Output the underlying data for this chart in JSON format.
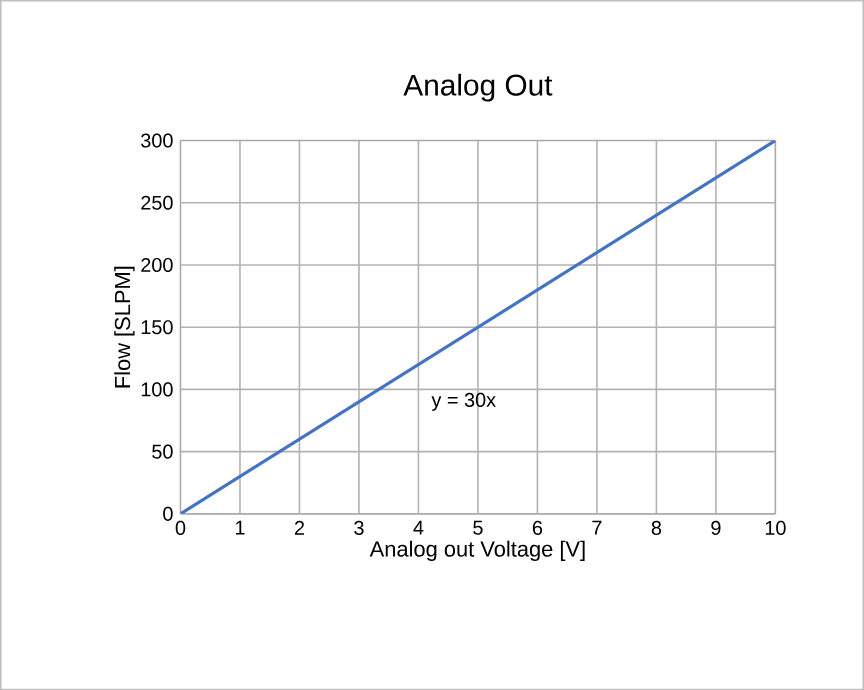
{
  "chart_data": {
    "type": "line",
    "title": "Analog Out",
    "xlabel": "Analog out Voltage [V]",
    "ylabel": "Flow [SLPM]",
    "x": [
      0,
      10
    ],
    "series": [
      {
        "color": "#4472c4",
        "values": [
          0,
          300
        ]
      }
    ],
    "xlim": [
      0,
      10
    ],
    "xticks": [
      0,
      1,
      2,
      3,
      4,
      5,
      6,
      7,
      8,
      9,
      10
    ],
    "ylim": [
      0,
      300
    ],
    "yticks": [
      0,
      50,
      100,
      150,
      200,
      250,
      300
    ],
    "grid": true,
    "marker": "none",
    "line_style": "solid",
    "annotations": [
      "y = 30x"
    ]
  }
}
